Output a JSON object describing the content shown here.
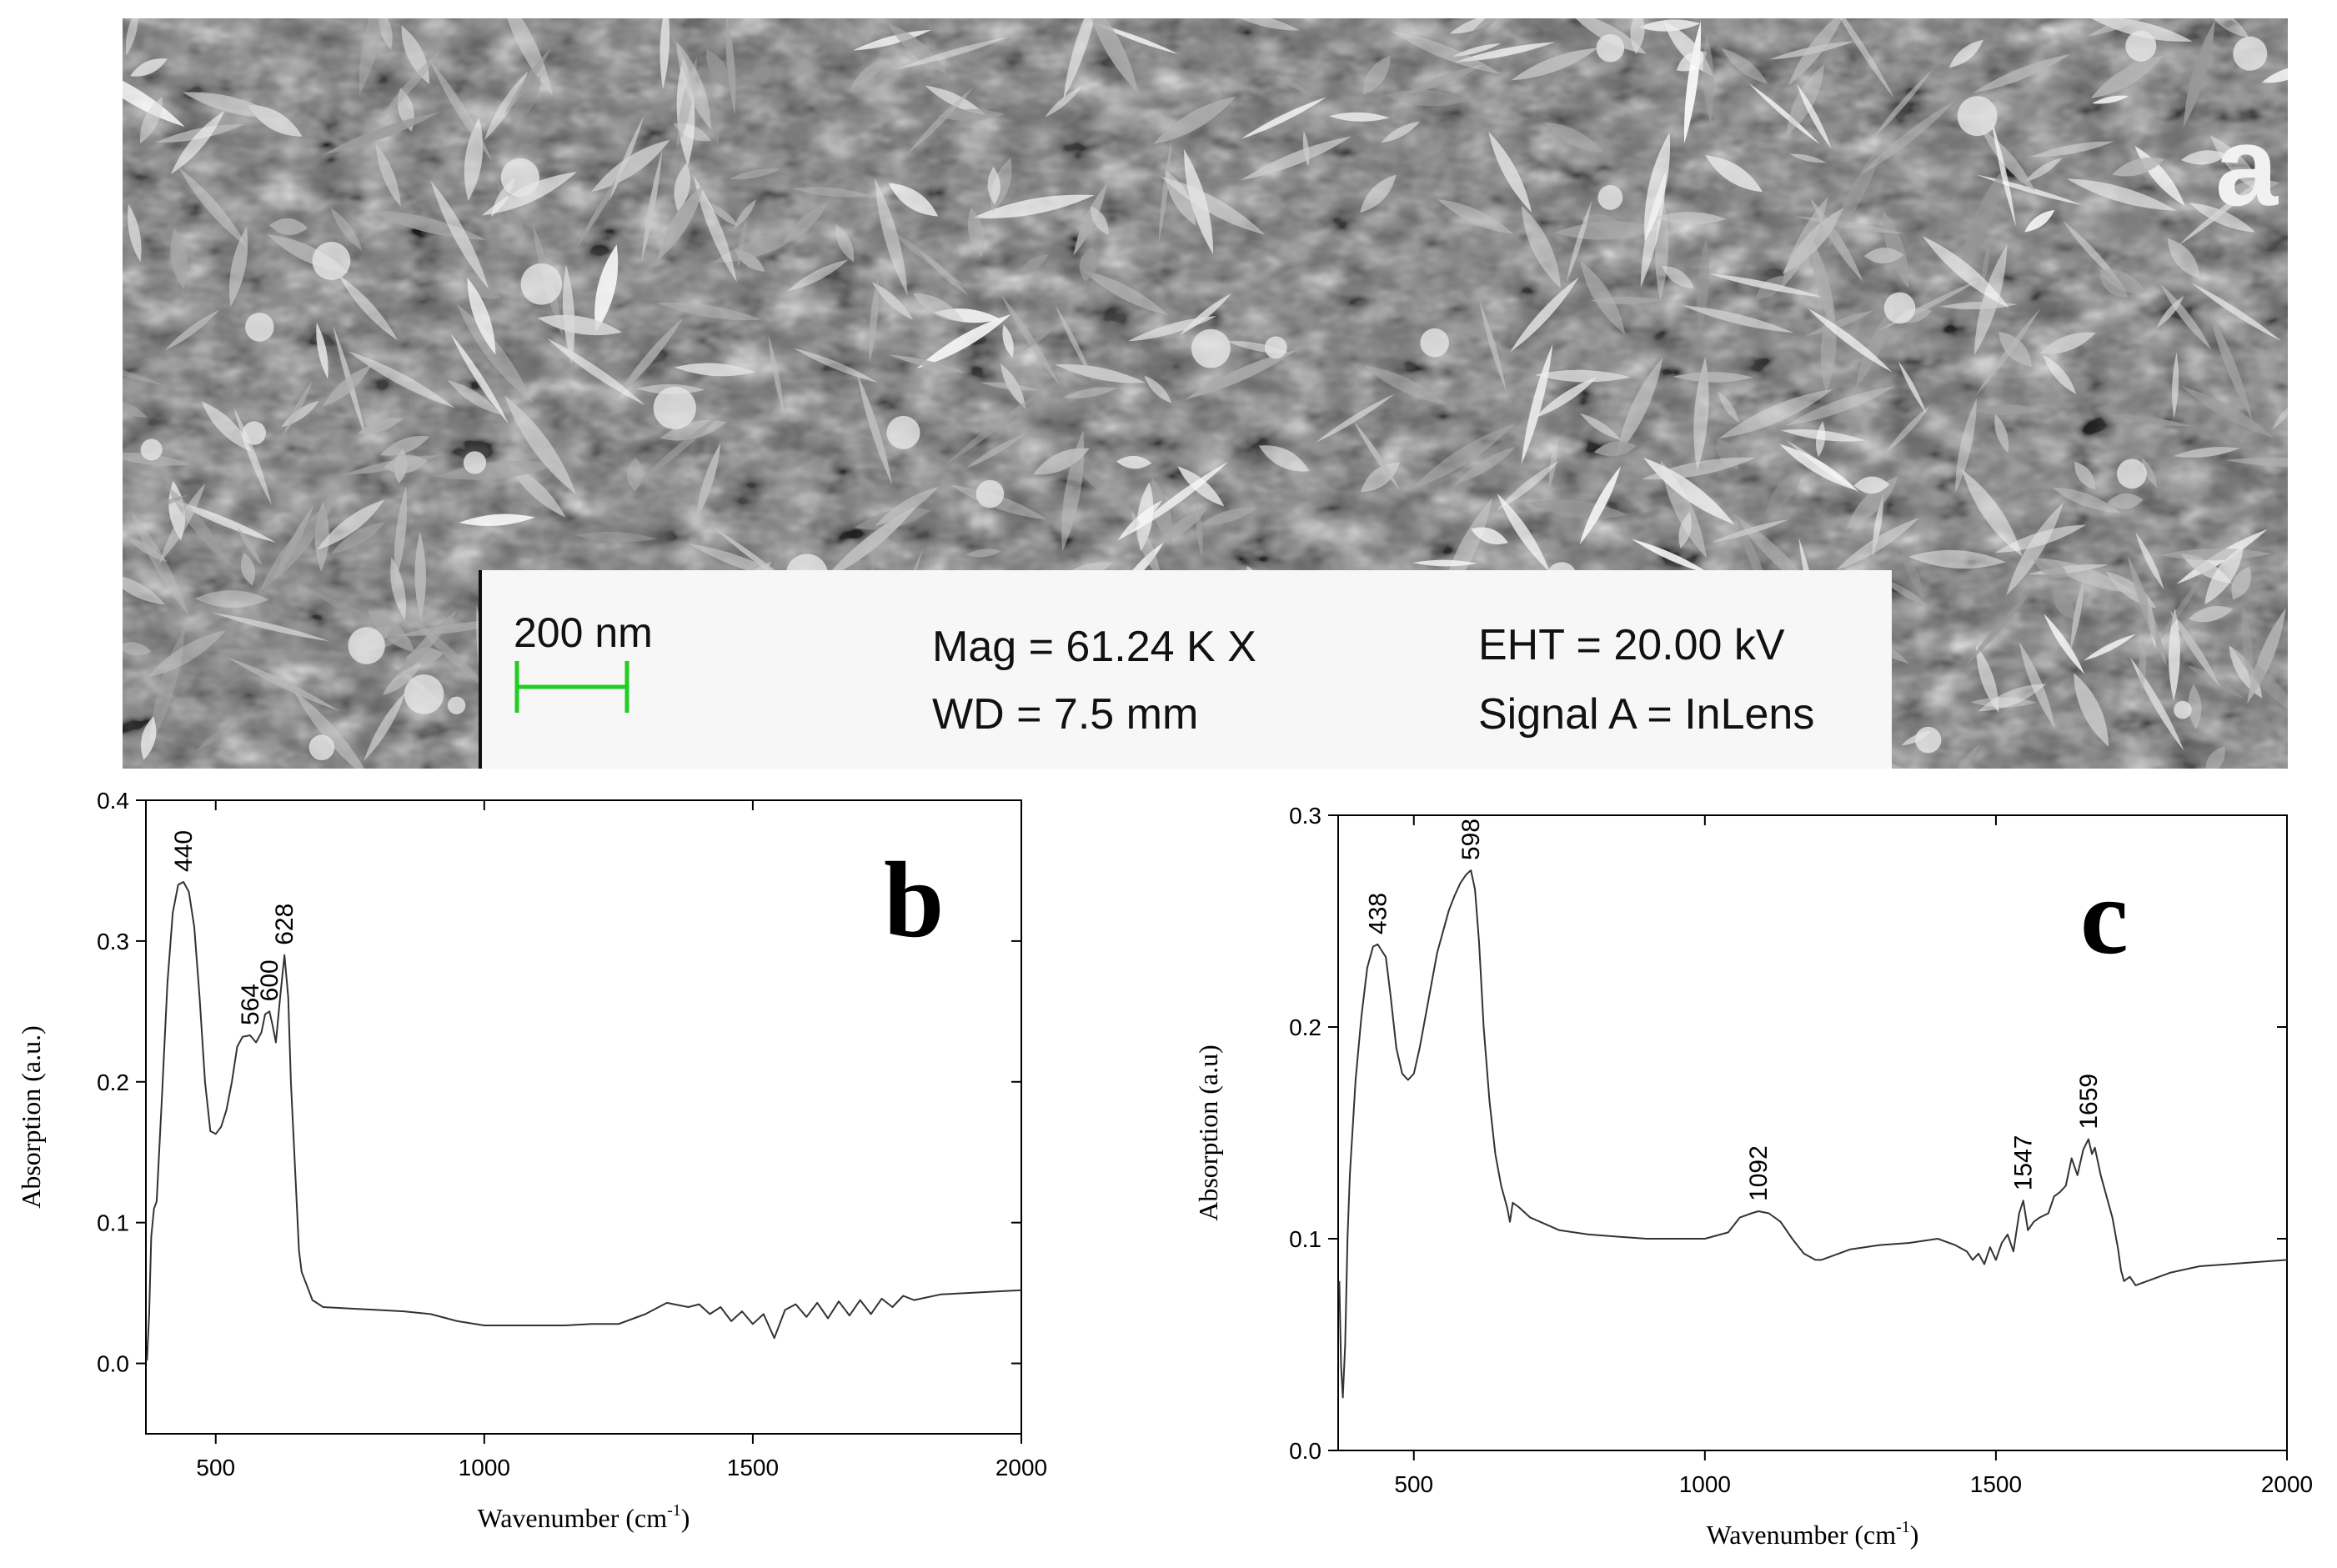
{
  "panel_a": {
    "letter": "a",
    "scale_label": "200 nm",
    "mag": "Mag =  61.24 K X",
    "wd": "WD =  7.5 mm",
    "eht": "EHT = 20.00 kV",
    "signal": "Signal A = InLens",
    "colors": {
      "scale_bar": "#22cc22",
      "panel_bg": "#f7f7f7"
    }
  },
  "chart_data": [
    {
      "type": "line",
      "panel_letter": "b",
      "xlabel": "Wavenumber (cm",
      "xlabel_sup": "-1",
      "xlabel_end": ")",
      "ylabel": "Absorption (a.u.)",
      "xlim": [
        370,
        2000
      ],
      "ylim": [
        -0.05,
        0.4
      ],
      "xticks": [
        500,
        1000,
        1500,
        2000
      ],
      "yticks": [
        0.0,
        0.1,
        0.2,
        0.3,
        0.4
      ],
      "ytick_labels": [
        "0.0",
        "0.1",
        "0.2",
        "0.3",
        "0.4"
      ],
      "series": [
        {
          "x": [
            372,
            376,
            380,
            385,
            390,
            400,
            410,
            420,
            430,
            440,
            450,
            460,
            470,
            480,
            490,
            500,
            510,
            520,
            530,
            540,
            550,
            564,
            575,
            585,
            592,
            600,
            606,
            612,
            620,
            628,
            635,
            640,
            650,
            655,
            660,
            665,
            670,
            680,
            700,
            750,
            800,
            850,
            900,
            950,
            1000,
            1050,
            1100,
            1150,
            1200,
            1250,
            1300,
            1340,
            1380,
            1400,
            1420,
            1440,
            1460,
            1480,
            1500,
            1520,
            1540,
            1560,
            1580,
            1600,
            1620,
            1640,
            1660,
            1680,
            1700,
            1720,
            1740,
            1760,
            1780,
            1800,
            1850,
            1900,
            1950,
            2000
          ],
          "y": [
            0.002,
            0.035,
            0.09,
            0.11,
            0.115,
            0.19,
            0.27,
            0.32,
            0.34,
            0.342,
            0.335,
            0.31,
            0.26,
            0.2,
            0.165,
            0.163,
            0.168,
            0.18,
            0.2,
            0.225,
            0.232,
            0.233,
            0.228,
            0.235,
            0.248,
            0.25,
            0.24,
            0.228,
            0.26,
            0.29,
            0.26,
            0.2,
            0.12,
            0.08,
            0.065,
            0.06,
            0.055,
            0.045,
            0.04,
            0.039,
            0.038,
            0.037,
            0.035,
            0.03,
            0.027,
            0.027,
            0.027,
            0.027,
            0.028,
            0.028,
            0.035,
            0.043,
            0.04,
            0.042,
            0.035,
            0.04,
            0.03,
            0.037,
            0.028,
            0.035,
            0.018,
            0.038,
            0.042,
            0.033,
            0.043,
            0.032,
            0.044,
            0.034,
            0.045,
            0.035,
            0.046,
            0.04,
            0.048,
            0.045,
            0.049,
            0.05,
            0.051,
            0.052
          ]
        }
      ],
      "annotations": [
        {
          "x": 440,
          "y": 0.342,
          "text": "440"
        },
        {
          "x": 564,
          "y": 0.233,
          "text": "564"
        },
        {
          "x": 600,
          "y": 0.25,
          "text": "600"
        },
        {
          "x": 628,
          "y": 0.29,
          "text": "628"
        }
      ]
    },
    {
      "type": "line",
      "panel_letter": "c",
      "xlabel": "Wavenumber (cm",
      "xlabel_sup": "-1",
      "xlabel_end": ")",
      "ylabel": "Absorption (a.u)",
      "xlim": [
        370,
        2000
      ],
      "ylim": [
        0.0,
        0.3
      ],
      "xticks": [
        500,
        1000,
        1500,
        2000
      ],
      "yticks": [
        0.0,
        0.1,
        0.2,
        0.3
      ],
      "ytick_labels": [
        "0.0",
        "0.1",
        "0.2",
        "0.3"
      ],
      "series": [
        {
          "x": [
            372,
            375,
            378,
            382,
            386,
            390,
            400,
            410,
            420,
            430,
            438,
            445,
            452,
            460,
            470,
            480,
            490,
            500,
            510,
            520,
            530,
            540,
            550,
            560,
            570,
            580,
            590,
            598,
            605,
            612,
            620,
            630,
            640,
            650,
            660,
            665,
            670,
            680,
            700,
            750,
            800,
            850,
            900,
            950,
            1000,
            1040,
            1060,
            1080,
            1092,
            1110,
            1130,
            1150,
            1170,
            1190,
            1200,
            1250,
            1300,
            1350,
            1400,
            1430,
            1450,
            1460,
            1470,
            1480,
            1490,
            1500,
            1510,
            1520,
            1530,
            1540,
            1547,
            1555,
            1565,
            1575,
            1590,
            1600,
            1610,
            1620,
            1630,
            1640,
            1650,
            1659,
            1665,
            1670,
            1680,
            1690,
            1700,
            1710,
            1715,
            1720,
            1730,
            1740,
            1760,
            1780,
            1800,
            1850,
            1900,
            1950,
            2000
          ],
          "y": [
            0.08,
            0.04,
            0.025,
            0.05,
            0.1,
            0.13,
            0.175,
            0.205,
            0.228,
            0.238,
            0.239,
            0.236,
            0.233,
            0.215,
            0.19,
            0.178,
            0.175,
            0.178,
            0.19,
            0.205,
            0.22,
            0.235,
            0.245,
            0.255,
            0.262,
            0.268,
            0.272,
            0.274,
            0.265,
            0.24,
            0.2,
            0.165,
            0.14,
            0.125,
            0.115,
            0.108,
            0.117,
            0.115,
            0.11,
            0.104,
            0.102,
            0.101,
            0.1,
            0.1,
            0.1,
            0.103,
            0.11,
            0.112,
            0.113,
            0.112,
            0.108,
            0.1,
            0.093,
            0.09,
            0.09,
            0.095,
            0.097,
            0.098,
            0.1,
            0.097,
            0.094,
            0.09,
            0.093,
            0.088,
            0.096,
            0.09,
            0.098,
            0.102,
            0.094,
            0.112,
            0.118,
            0.104,
            0.108,
            0.11,
            0.112,
            0.12,
            0.122,
            0.125,
            0.138,
            0.13,
            0.142,
            0.147,
            0.14,
            0.143,
            0.13,
            0.12,
            0.11,
            0.095,
            0.085,
            0.08,
            0.082,
            0.078,
            0.08,
            0.082,
            0.084,
            0.087,
            0.088,
            0.089,
            0.09
          ]
        }
      ],
      "annotations": [
        {
          "x": 438,
          "y": 0.239,
          "text": "438"
        },
        {
          "x": 598,
          "y": 0.274,
          "text": "598"
        },
        {
          "x": 1092,
          "y": 0.113,
          "text": "1092"
        },
        {
          "x": 1547,
          "y": 0.118,
          "text": "1547"
        },
        {
          "x": 1659,
          "y": 0.147,
          "text": "1659"
        }
      ]
    }
  ]
}
